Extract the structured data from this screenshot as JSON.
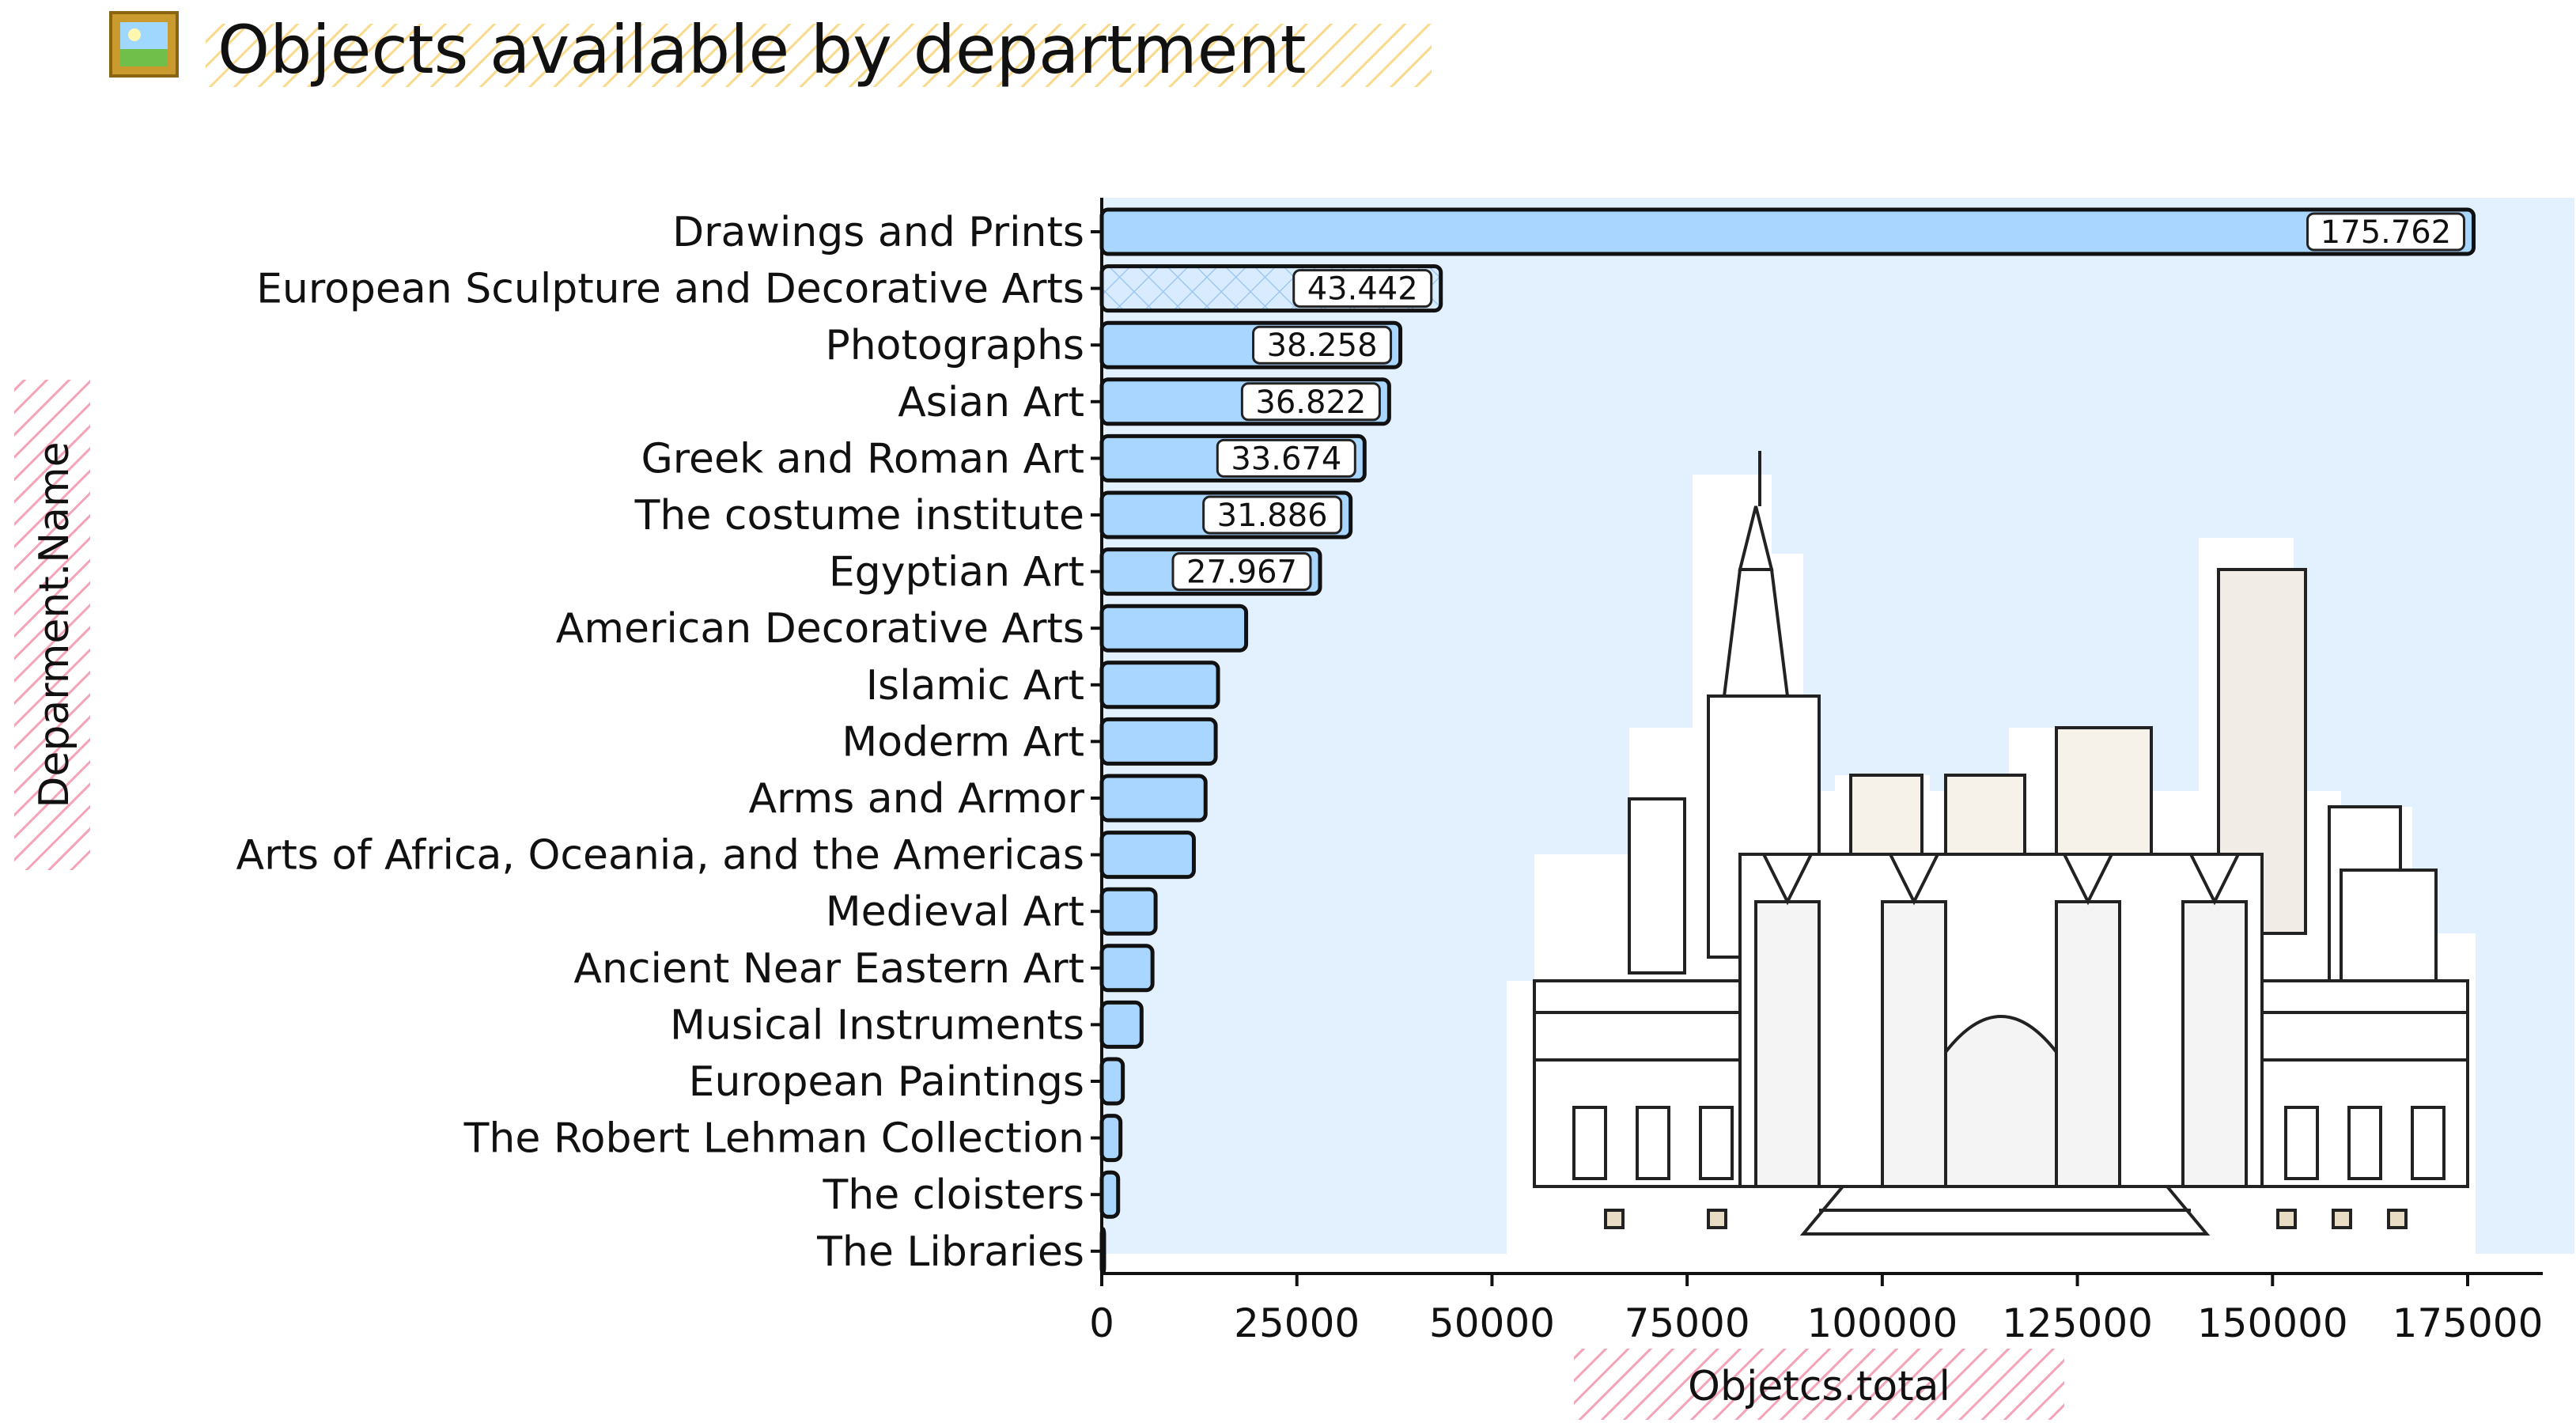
{
  "title": "Objects available by department",
  "colors": {
    "bar_fill": "#a9d6ff",
    "bar_stroke": "#111111",
    "plot_background": "#e3f0fd",
    "axis_title_hatch": "#f5a3b6",
    "title_hatch": "#f9d98a",
    "label_box_fill": "#ffffff"
  },
  "icons": {
    "title_icon": "framed-picture-icon",
    "illustration": "museum-building-illustration"
  },
  "chart_data": {
    "type": "bar",
    "orientation": "horizontal",
    "xlabel": "Objetcs.total",
    "ylabel": "Deparment.Name",
    "xlim": [
      0,
      185000
    ],
    "xticks": [
      0,
      25000,
      50000,
      75000,
      100000,
      125000,
      150000,
      175000
    ],
    "xtick_labels": [
      "0",
      "25000",
      "50000",
      "75000",
      "100000",
      "125000",
      "150000",
      "175000"
    ],
    "grid": false,
    "categories": [
      "Drawings and Prints",
      "European Sculpture and Decorative Arts",
      "Photographs",
      "Asian Art",
      "Greek and Roman Art",
      "The costume institute",
      "Egyptian Art",
      "American Decorative Arts",
      "Islamic Art",
      "Moderm Art",
      "Arms and Armor",
      "Arts of Africa, Oceania, and the Americas",
      "Medieval Art",
      "Ancient Near Eastern Art",
      "Musical Instruments",
      "European Paintings",
      "The Robert Lehman Collection",
      "The cloisters",
      "The Libraries"
    ],
    "values": [
      175762,
      43442,
      38258,
      36822,
      33674,
      31886,
      27967,
      18500,
      14900,
      14600,
      13300,
      11800,
      6900,
      6500,
      5100,
      2700,
      2400,
      2100,
      300
    ],
    "data_labels": [
      "175.762",
      "43.442",
      "38.258",
      "36.822",
      "33.674",
      "31.886",
      "27.967",
      null,
      null,
      null,
      null,
      null,
      null,
      null,
      null,
      null,
      null,
      null,
      null
    ],
    "highlighted_category": "European Sculpture and Decorative Arts"
  }
}
